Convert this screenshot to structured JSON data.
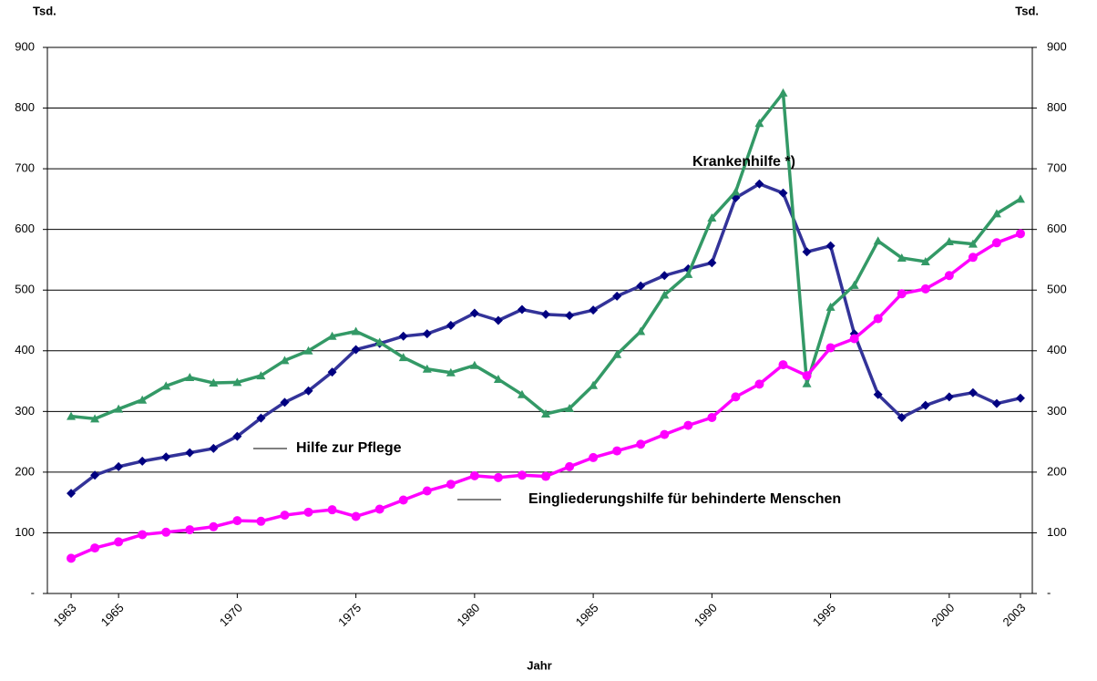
{
  "chart_data": {
    "type": "line",
    "y_label": "Tsd.",
    "y2_label": "Tsd.",
    "x_label": "Jahr",
    "x": [
      1963,
      1964,
      1965,
      1966,
      1967,
      1968,
      1969,
      1970,
      1971,
      1972,
      1973,
      1974,
      1975,
      1976,
      1977,
      1978,
      1979,
      1980,
      1981,
      1982,
      1983,
      1984,
      1985,
      1986,
      1987,
      1988,
      1989,
      1990,
      1991,
      1992,
      1993,
      1994,
      1995,
      1996,
      1997,
      1998,
      1999,
      2000,
      2001,
      2002,
      2003
    ],
    "series": [
      {
        "name": "Hilfe zur Pflege",
        "color": "#333399",
        "marker": "diamond",
        "values": [
          165,
          195,
          209,
          218,
          225,
          232,
          239,
          259,
          289,
          315,
          334,
          365,
          402,
          412,
          424,
          428,
          442,
          462,
          450,
          468,
          460,
          458,
          467,
          490,
          507,
          524,
          535,
          545,
          652,
          675,
          660,
          563,
          573,
          428,
          328,
          290,
          310,
          324,
          331,
          313,
          322
        ]
      },
      {
        "name": "Krankenhilfe *)",
        "color": "#339966",
        "marker": "triangle",
        "values": [
          292,
          288,
          304,
          319,
          342,
          356,
          347,
          348,
          359,
          384,
          400,
          424,
          432,
          414,
          389,
          370,
          364,
          376,
          353,
          328,
          296,
          305,
          343,
          394,
          432,
          492,
          526,
          619,
          662,
          775,
          825,
          346,
          472,
          508,
          581,
          553,
          547,
          580,
          576,
          626,
          650
        ]
      },
      {
        "name": "Eingliederungshilfe für behinderte Menschen",
        "color": "#ff00ff",
        "marker": "circle",
        "values": [
          58,
          75,
          85,
          97,
          101,
          105,
          110,
          120,
          119,
          129,
          134,
          138,
          127,
          139,
          154,
          169,
          180,
          194,
          191,
          195,
          193,
          209,
          224,
          235,
          246,
          262,
          277,
          290,
          324,
          345,
          377,
          359,
          405,
          420,
          453,
          494,
          502,
          524,
          554,
          578,
          593
        ]
      }
    ],
    "xlim": [
      1962,
      2003.5
    ],
    "xticks": [
      1963,
      1965,
      1970,
      1975,
      1980,
      1985,
      1990,
      1995,
      2000,
      2003
    ],
    "ylim": [
      0,
      900
    ],
    "yticks": [
      {
        "value": 0,
        "label": "-"
      },
      100,
      200,
      300,
      400,
      500,
      600,
      700,
      800,
      900
    ],
    "y2lim": [
      0,
      900
    ],
    "y2ticks": [
      {
        "value": 0,
        "label": "-"
      },
      100,
      200,
      300,
      400,
      500,
      600,
      700,
      800,
      900
    ],
    "grid": true
  }
}
